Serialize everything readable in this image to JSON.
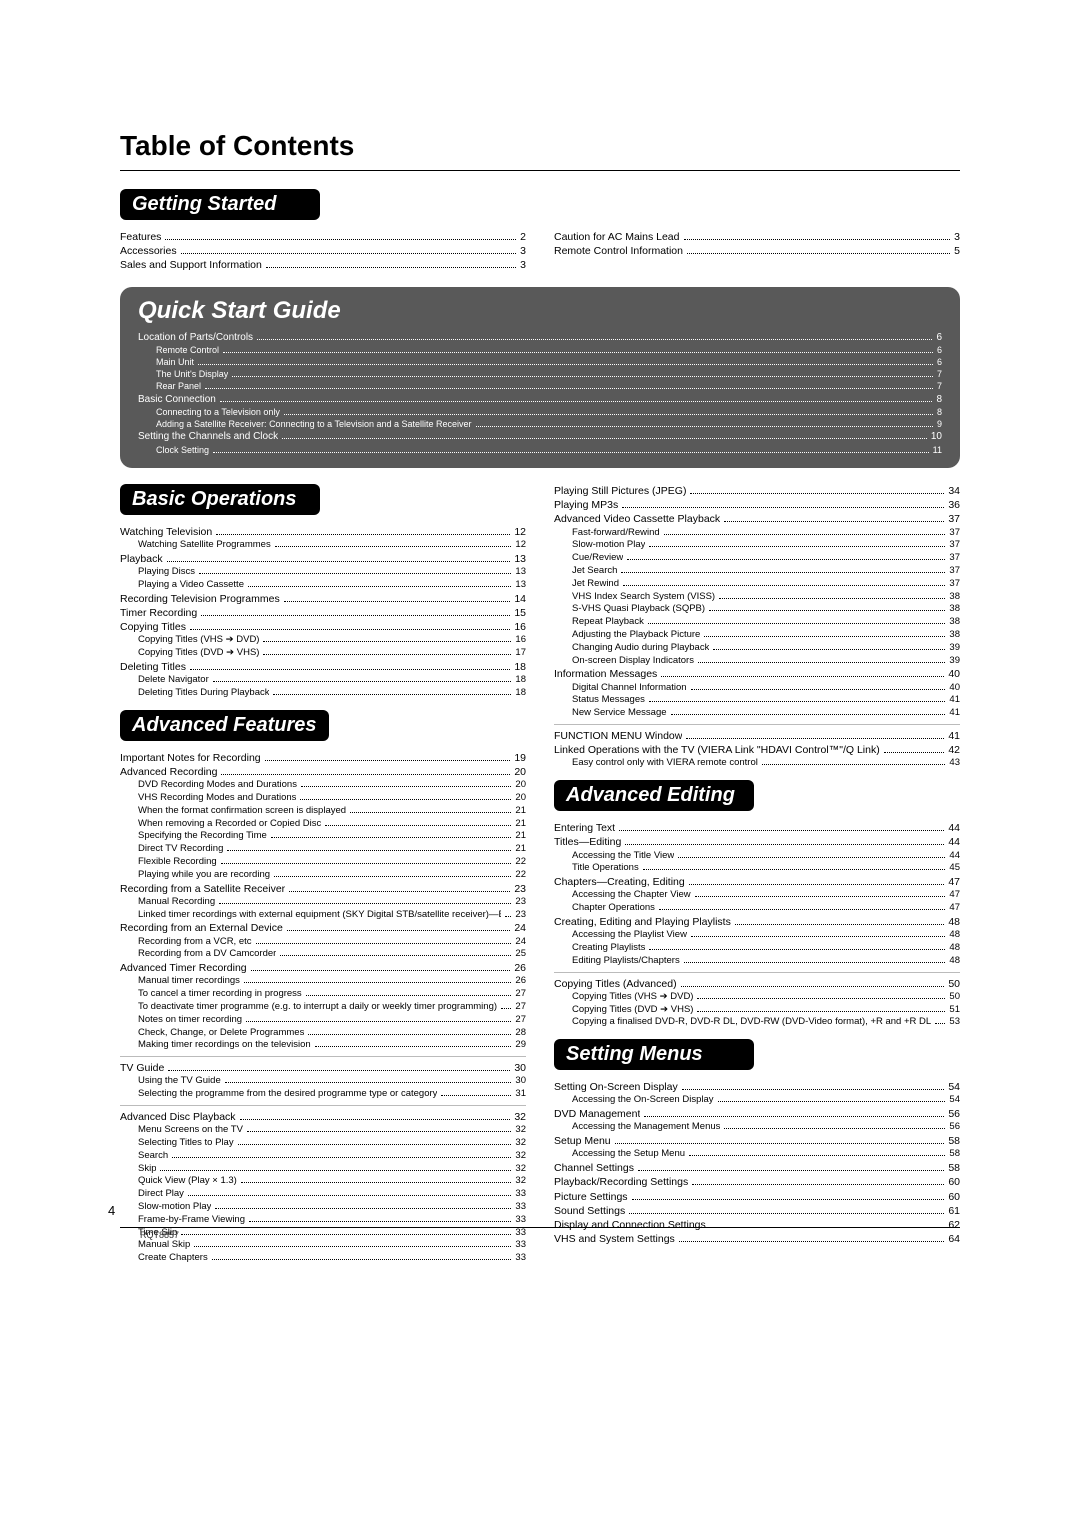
{
  "title": "Table of Contents",
  "page_number": "4",
  "footer_code": "RQT8857",
  "colors": {
    "bar_bg": "#000000",
    "bar_fg": "#ffffff",
    "qsg_bg": "#595959"
  },
  "getting_started": {
    "heading": "Getting Started",
    "left": [
      {
        "label": "Features",
        "page": "2",
        "lvl": 0
      },
      {
        "label": "Accessories",
        "page": "3",
        "lvl": 0
      },
      {
        "label": "Sales and Support Information",
        "page": "3",
        "lvl": 0
      }
    ],
    "right": [
      {
        "label": "Caution for AC Mains Lead",
        "page": "3",
        "lvl": 0
      },
      {
        "label": "Remote Control Information",
        "page": "5",
        "lvl": 0
      }
    ]
  },
  "qsg": {
    "heading": "Quick Start Guide",
    "items": [
      {
        "label": "Location of Parts/Controls",
        "page": "6",
        "lvl": 0
      },
      {
        "label": "Remote Control",
        "page": "6",
        "lvl": 1
      },
      {
        "label": "Main Unit",
        "page": "6",
        "lvl": 1
      },
      {
        "label": "The Unit's Display",
        "page": "7",
        "lvl": 1
      },
      {
        "label": "Rear Panel",
        "page": "7",
        "lvl": 1
      },
      {
        "label": "Basic Connection",
        "page": "8",
        "lvl": 0
      },
      {
        "label": "Connecting to a Television only",
        "page": "8",
        "lvl": 1
      },
      {
        "label": "Adding a Satellite Receiver: Connecting to a Television and a Satellite Receiver",
        "page": "9",
        "lvl": 1
      },
      {
        "label": "Setting the Channels and Clock",
        "page": "10",
        "lvl": 0
      },
      {
        "label": "Clock Setting",
        "page": "11",
        "lvl": 1
      }
    ]
  },
  "basic_ops": {
    "heading": "Basic Operations",
    "items": [
      {
        "label": "Watching Television",
        "page": "12",
        "lvl": 0
      },
      {
        "label": "Watching Satellite Programmes",
        "page": "12",
        "lvl": 1
      },
      {
        "label": "Playback",
        "page": "13",
        "lvl": 0
      },
      {
        "label": "Playing Discs",
        "page": "13",
        "lvl": 1
      },
      {
        "label": "Playing a Video Cassette",
        "page": "13",
        "lvl": 1
      },
      {
        "label": "Recording Television Programmes",
        "page": "14",
        "lvl": 0
      },
      {
        "label": "Timer Recording",
        "page": "15",
        "lvl": 0
      },
      {
        "label": "Copying Titles",
        "page": "16",
        "lvl": 0
      },
      {
        "label": "Copying Titles (VHS ➔ DVD)",
        "page": "16",
        "lvl": 1
      },
      {
        "label": "Copying Titles (DVD ➔ VHS)",
        "page": "17",
        "lvl": 1
      },
      {
        "label": "Deleting Titles",
        "page": "18",
        "lvl": 0
      },
      {
        "label": "Delete Navigator",
        "page": "18",
        "lvl": 1
      },
      {
        "label": "Deleting Titles During Playback",
        "page": "18",
        "lvl": 1
      }
    ]
  },
  "adv_feat": {
    "heading": "Advanced Features",
    "items": [
      {
        "label": "Important Notes for Recording",
        "page": "19",
        "lvl": 0
      },
      {
        "label": "Advanced Recording",
        "page": "20",
        "lvl": 0
      },
      {
        "label": "DVD Recording Modes and Durations",
        "page": "20",
        "lvl": 1
      },
      {
        "label": "VHS Recording Modes and Durations",
        "page": "20",
        "lvl": 1
      },
      {
        "label": "When the format confirmation screen is displayed",
        "page": "21",
        "lvl": 1
      },
      {
        "label": "When removing a Recorded or Copied Disc",
        "page": "21",
        "lvl": 1
      },
      {
        "label": "Specifying the Recording Time",
        "page": "21",
        "lvl": 1
      },
      {
        "label": "Direct TV Recording",
        "page": "21",
        "lvl": 1
      },
      {
        "label": "Flexible Recording",
        "page": "22",
        "lvl": 1
      },
      {
        "label": "Playing while you are recording",
        "page": "22",
        "lvl": 1
      },
      {
        "label": "Recording from a Satellite Receiver",
        "page": "23",
        "lvl": 0
      },
      {
        "label": "Manual Recording",
        "page": "23",
        "lvl": 1
      },
      {
        "label": "Linked timer recordings with external equipment (SKY Digital STB/satellite receiver)—EXT LINK",
        "page": "23",
        "lvl": 1
      },
      {
        "label": "Recording from an External Device",
        "page": "24",
        "lvl": 0
      },
      {
        "label": "Recording from a VCR, etc",
        "page": "24",
        "lvl": 1
      },
      {
        "label": "Recording from a DV Camcorder",
        "page": "25",
        "lvl": 1
      },
      {
        "label": "Advanced Timer Recording",
        "page": "26",
        "lvl": 0
      },
      {
        "label": "Manual timer recordings",
        "page": "26",
        "lvl": 1
      },
      {
        "label": "To cancel a timer recording in progress",
        "page": "27",
        "lvl": 1
      },
      {
        "label": "To deactivate timer programme (e.g. to interrupt a daily or weekly timer programming)",
        "page": "27",
        "lvl": 1
      },
      {
        "label": "Notes on timer recording",
        "page": "27",
        "lvl": 1
      },
      {
        "label": "Check, Change, or Delete Programmes",
        "page": "28",
        "lvl": 1
      },
      {
        "label": "Making timer recordings on the television",
        "page": "29",
        "lvl": 1
      }
    ]
  },
  "adv_feat2": [
    {
      "label": "TV Guide",
      "page": "30",
      "lvl": 0
    },
    {
      "label": "Using the TV Guide",
      "page": "30",
      "lvl": 1
    },
    {
      "label": "Selecting the programme from the desired programme type or category",
      "page": "31",
      "lvl": 1
    }
  ],
  "adv_feat3": [
    {
      "label": "Advanced Disc Playback",
      "page": "32",
      "lvl": 0
    },
    {
      "label": "Menu Screens on the TV",
      "page": "32",
      "lvl": 1
    },
    {
      "label": "Selecting Titles to Play",
      "page": "32",
      "lvl": 1
    },
    {
      "label": "Search",
      "page": "32",
      "lvl": 1
    },
    {
      "label": "Skip",
      "page": "32",
      "lvl": 1
    },
    {
      "label": "Quick View (Play × 1.3)",
      "page": "32",
      "lvl": 1
    },
    {
      "label": "Direct Play",
      "page": "33",
      "lvl": 1
    },
    {
      "label": "Slow-motion Play",
      "page": "33",
      "lvl": 1
    },
    {
      "label": "Frame-by-Frame Viewing",
      "page": "33",
      "lvl": 1
    },
    {
      "label": "Time Slip",
      "page": "33",
      "lvl": 1
    },
    {
      "label": "Manual Skip",
      "page": "33",
      "lvl": 1
    },
    {
      "label": "Create Chapters",
      "page": "33",
      "lvl": 1
    }
  ],
  "right_top": [
    {
      "label": "Playing Still Pictures (JPEG)",
      "page": "34",
      "lvl": 0
    },
    {
      "label": "Playing MP3s",
      "page": "36",
      "lvl": 0
    },
    {
      "label": "Advanced Video Cassette Playback",
      "page": "37",
      "lvl": 0
    },
    {
      "label": "Fast-forward/Rewind",
      "page": "37",
      "lvl": 1
    },
    {
      "label": "Slow-motion Play",
      "page": "37",
      "lvl": 1
    },
    {
      "label": "Cue/Review",
      "page": "37",
      "lvl": 1
    },
    {
      "label": "Jet Search",
      "page": "37",
      "lvl": 1
    },
    {
      "label": "Jet Rewind",
      "page": "37",
      "lvl": 1
    },
    {
      "label": "VHS Index Search System (VISS)",
      "page": "38",
      "lvl": 1
    },
    {
      "label": "S-VHS Quasi Playback (SQPB)",
      "page": "38",
      "lvl": 1
    },
    {
      "label": "Repeat Playback",
      "page": "38",
      "lvl": 1
    },
    {
      "label": "Adjusting the Playback Picture",
      "page": "38",
      "lvl": 1
    },
    {
      "label": "Changing Audio during Playback",
      "page": "39",
      "lvl": 1
    },
    {
      "label": "On-screen Display Indicators",
      "page": "39",
      "lvl": 1
    },
    {
      "label": "Information Messages",
      "page": "40",
      "lvl": 0
    },
    {
      "label": "Digital Channel Information",
      "page": "40",
      "lvl": 1
    },
    {
      "label": "Status Messages",
      "page": "41",
      "lvl": 1
    },
    {
      "label": "New Service Message",
      "page": "41",
      "lvl": 1
    }
  ],
  "right_top2": [
    {
      "label": "FUNCTION MENU Window",
      "page": "41",
      "lvl": 0
    },
    {
      "label": "Linked Operations with the TV (VIERA Link \"HDAVI Control™\"/Q Link)",
      "page": "42",
      "lvl": 0
    },
    {
      "label": "Easy control only with VIERA remote control",
      "page": "43",
      "lvl": 1
    }
  ],
  "adv_edit": {
    "heading": "Advanced Editing",
    "items": [
      {
        "label": "Entering Text",
        "page": "44",
        "lvl": 0
      },
      {
        "label": "Titles—Editing",
        "page": "44",
        "lvl": 0
      },
      {
        "label": "Accessing the Title View",
        "page": "44",
        "lvl": 1
      },
      {
        "label": "Title Operations",
        "page": "45",
        "lvl": 1
      },
      {
        "label": "Chapters—Creating, Editing",
        "page": "47",
        "lvl": 0
      },
      {
        "label": "Accessing the Chapter View",
        "page": "47",
        "lvl": 1
      },
      {
        "label": "Chapter Operations",
        "page": "47",
        "lvl": 1
      },
      {
        "label": "Creating, Editing and Playing Playlists",
        "page": "48",
        "lvl": 0
      },
      {
        "label": "Accessing the Playlist View",
        "page": "48",
        "lvl": 1
      },
      {
        "label": "Creating Playlists",
        "page": "48",
        "lvl": 1
      },
      {
        "label": "Editing Playlists/Chapters",
        "page": "48",
        "lvl": 1
      }
    ]
  },
  "adv_edit2": [
    {
      "label": "Copying Titles (Advanced)",
      "page": "50",
      "lvl": 0
    },
    {
      "label": "Copying Titles (VHS ➔ DVD)",
      "page": "50",
      "lvl": 1
    },
    {
      "label": "Copying Titles (DVD ➔ VHS)",
      "page": "51",
      "lvl": 1
    },
    {
      "label": "Copying a finalised DVD-R, DVD-R DL, DVD-RW (DVD-Video format), +R and +R DL",
      "page": "53",
      "lvl": 1
    }
  ],
  "setting_menus": {
    "heading": "Setting Menus",
    "items": [
      {
        "label": "Setting On-Screen Display",
        "page": "54",
        "lvl": 0
      },
      {
        "label": "Accessing the On-Screen Display",
        "page": "54",
        "lvl": 1
      },
      {
        "label": "DVD Management",
        "page": "56",
        "lvl": 0
      },
      {
        "label": "Accessing the Management Menus",
        "page": "56",
        "lvl": 1
      },
      {
        "label": "Setup Menu",
        "page": "58",
        "lvl": 0
      },
      {
        "label": "Accessing the Setup Menu",
        "page": "58",
        "lvl": 1
      },
      {
        "label": "Channel Settings",
        "page": "58",
        "lvl": 0
      },
      {
        "label": "Playback/Recording Settings",
        "page": "60",
        "lvl": 0
      },
      {
        "label": "Picture Settings",
        "page": "60",
        "lvl": 0
      },
      {
        "label": "Sound Settings",
        "page": "61",
        "lvl": 0
      },
      {
        "label": "Display and Connection Settings",
        "page": "62",
        "lvl": 0
      },
      {
        "label": "VHS and System Settings",
        "page": "64",
        "lvl": 0
      }
    ]
  }
}
